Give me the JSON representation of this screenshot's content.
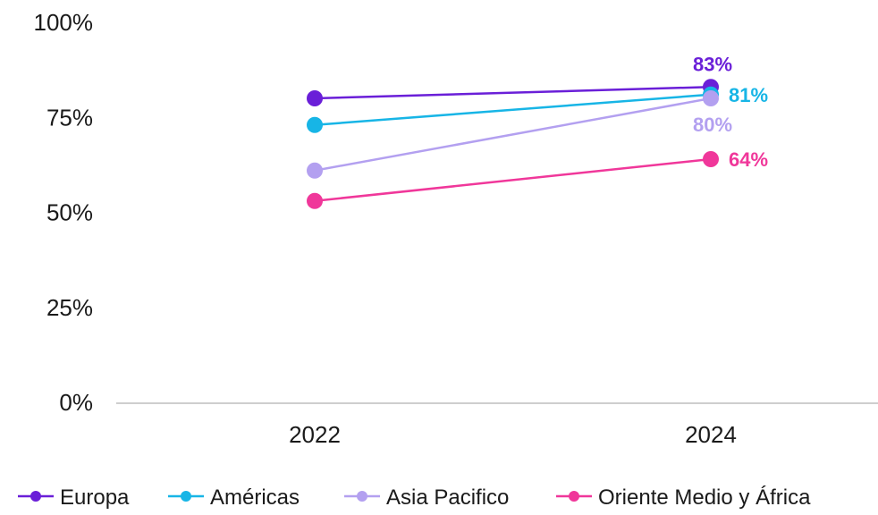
{
  "chart_data": {
    "type": "line",
    "title": "",
    "xlabel": "",
    "ylabel": "",
    "categories": [
      "2022",
      "2024"
    ],
    "ylim": [
      0,
      100
    ],
    "yticks": [
      "0%",
      "25%",
      "50%",
      "75%",
      "100%"
    ],
    "ytick_values": [
      0,
      25,
      50,
      75,
      100
    ],
    "grid": false,
    "legend_position": "bottom",
    "series": [
      {
        "name": "Europa",
        "values": [
          80,
          83
        ],
        "color": "#6a1fd8",
        "end_label": "83%"
      },
      {
        "name": "Américas",
        "values": [
          73,
          81
        ],
        "color": "#17b5e6",
        "end_label": "81%"
      },
      {
        "name": "Asia Pacifico",
        "values": [
          61,
          80
        ],
        "color": "#b3a0f0",
        "end_label": "80%"
      },
      {
        "name": "Oriente Medio y África",
        "values": [
          53,
          64
        ],
        "color": "#f0379a",
        "end_label": "64%"
      }
    ]
  }
}
